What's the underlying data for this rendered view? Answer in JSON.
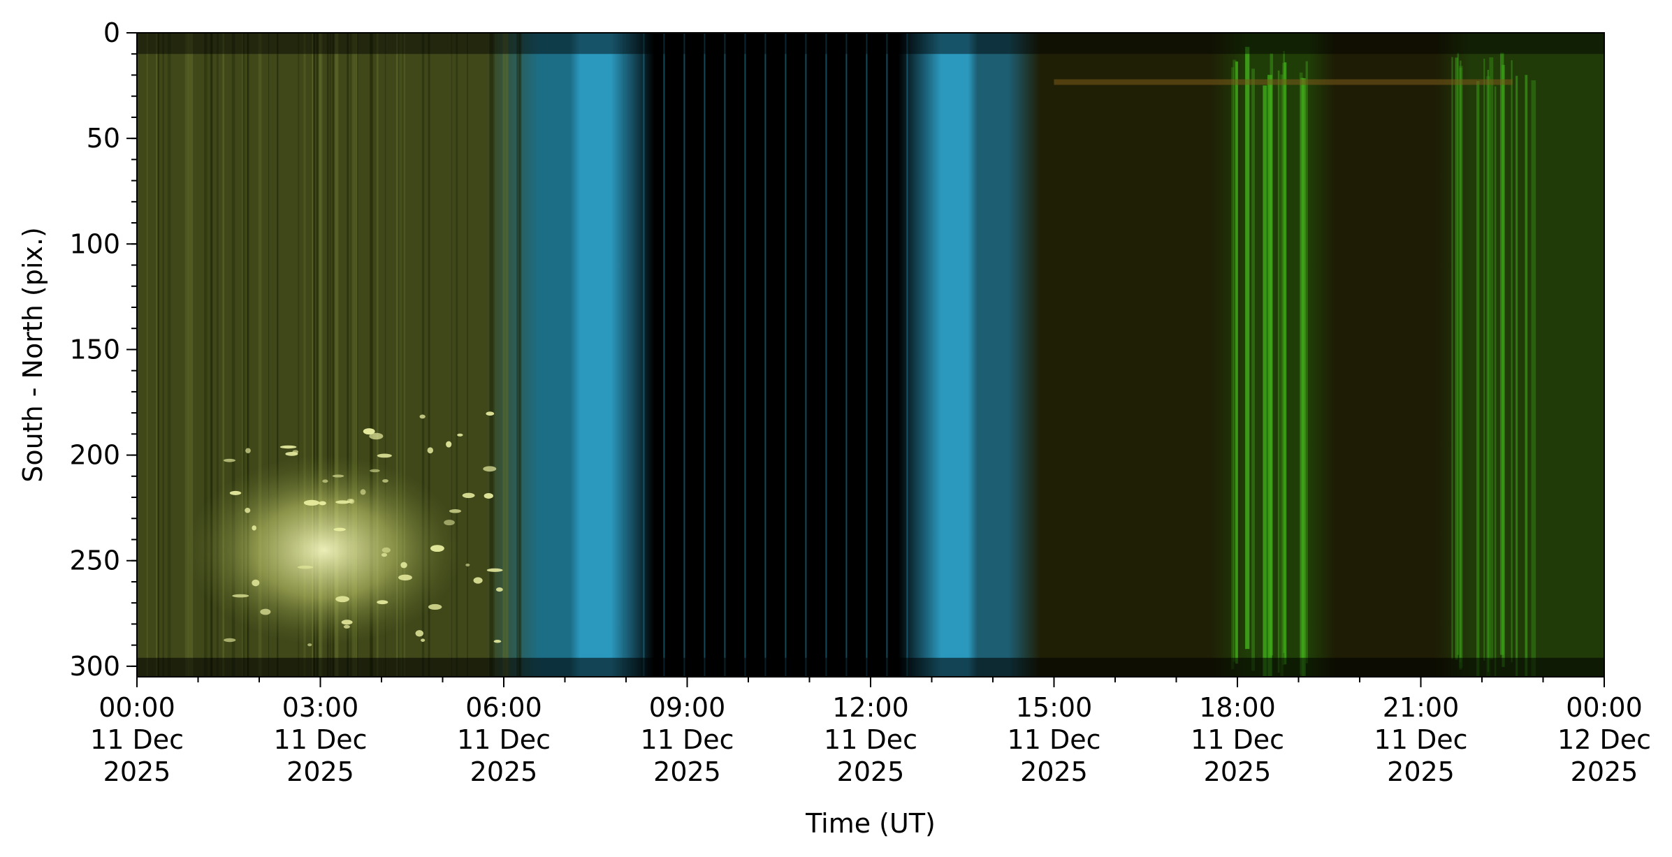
{
  "chart_data": {
    "type": "heatmap",
    "title": "",
    "xlabel": "Time (UT)",
    "ylabel": "South - North (pix.)",
    "xlim": [
      "2025-12-11T00:00",
      "2025-12-12T00:00"
    ],
    "ylim": [
      305,
      0
    ],
    "y_inverted": true,
    "grid": false,
    "colormap": "RGB composite (keogram)",
    "x_ticks": [
      {
        "value": "2025-12-11T00:00",
        "lines": [
          "00:00",
          "11 Dec",
          "2025"
        ]
      },
      {
        "value": "2025-12-11T03:00",
        "lines": [
          "03:00",
          "11 Dec",
          "2025"
        ]
      },
      {
        "value": "2025-12-11T06:00",
        "lines": [
          "06:00",
          "11 Dec",
          "2025"
        ]
      },
      {
        "value": "2025-12-11T09:00",
        "lines": [
          "09:00",
          "11 Dec",
          "2025"
        ]
      },
      {
        "value": "2025-12-11T12:00",
        "lines": [
          "12:00",
          "11 Dec",
          "2025"
        ]
      },
      {
        "value": "2025-12-11T15:00",
        "lines": [
          "15:00",
          "11 Dec",
          "2025"
        ]
      },
      {
        "value": "2025-12-11T18:00",
        "lines": [
          "18:00",
          "11 Dec",
          "2025"
        ]
      },
      {
        "value": "2025-12-11T21:00",
        "lines": [
          "21:00",
          "11 Dec",
          "2025"
        ]
      },
      {
        "value": "2025-12-12T00:00",
        "lines": [
          "00:00",
          "12 Dec",
          "2025"
        ]
      }
    ],
    "x_minor_tick_hours": 1,
    "y_ticks": [
      {
        "value": 0,
        "label": "0"
      },
      {
        "value": 50,
        "label": "50"
      },
      {
        "value": 100,
        "label": "100"
      },
      {
        "value": 150,
        "label": "150"
      },
      {
        "value": 200,
        "label": "200"
      },
      {
        "value": 250,
        "label": "250"
      },
      {
        "value": 300,
        "label": "300"
      }
    ],
    "y_minor_tick_step": 10,
    "time_bands": [
      {
        "start": "2025-12-11T00:00",
        "end": "2025-12-11T06:30",
        "color": "#40481a",
        "description": "dim greenish-yellow background"
      },
      {
        "start": "2025-12-11T06:30",
        "end": "2025-12-11T07:10",
        "color": "#1c6e86"
      },
      {
        "start": "2025-12-11T07:10",
        "end": "2025-12-11T07:50",
        "color": "#2b98bd"
      },
      {
        "start": "2025-12-11T07:50",
        "end": "2025-12-11T13:05",
        "color": "#000000"
      },
      {
        "start": "2025-12-11T13:05",
        "end": "2025-12-11T13:40",
        "color": "#2b98bd"
      },
      {
        "start": "2025-12-11T13:40",
        "end": "2025-12-11T14:20",
        "color": "#1d5e72"
      },
      {
        "start": "2025-12-11T14:20",
        "end": "2025-12-11T18:00",
        "color": "#1f1f06"
      },
      {
        "start": "2025-12-11T18:00",
        "end": "2025-12-11T19:20",
        "color": "#1f3d07"
      },
      {
        "start": "2025-12-11T19:20",
        "end": "2025-12-11T21:30",
        "color": "#1e1c05"
      },
      {
        "start": "2025-12-11T21:30",
        "end": "2025-12-12T00:00",
        "color": "#203a08"
      }
    ],
    "bright_region": {
      "start": "2025-12-11T01:30",
      "end": "2025-12-11T06:00",
      "y_range": [
        200,
        290
      ],
      "color": "#e8eda0"
    },
    "green_streaks": [
      {
        "time": "2025-12-11T18:35",
        "color": "#45b81d"
      },
      {
        "time": "2025-12-11T22:10",
        "color": "#3aa619"
      }
    ]
  }
}
